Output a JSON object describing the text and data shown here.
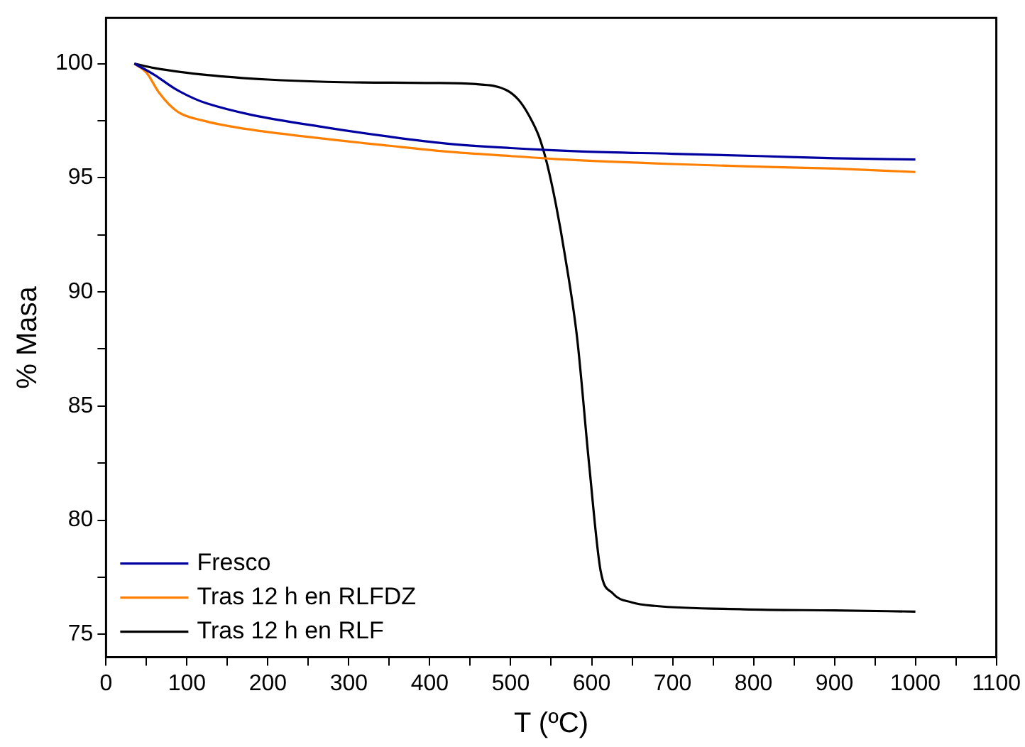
{
  "chart_data": {
    "type": "line",
    "xlabel": "T (ºC)",
    "ylabel": "% Masa",
    "xlim": [
      0,
      1100
    ],
    "ylim": [
      74,
      102
    ],
    "xticks": [
      0,
      {
        "value": 50,
        "label": null
      },
      100,
      {
        "value": 150,
        "label": null
      },
      200,
      {
        "value": 250,
        "label": null
      },
      300,
      {
        "value": 350,
        "label": null
      },
      400,
      {
        "value": 450,
        "label": null
      },
      500,
      {
        "value": 550,
        "label": null
      },
      600,
      {
        "value": 650,
        "label": null
      },
      700,
      {
        "value": 750,
        "label": null
      },
      800,
      {
        "value": 850,
        "label": null
      },
      900,
      {
        "value": 950,
        "label": null
      },
      1000,
      {
        "value": 1050,
        "label": null
      },
      1100
    ],
    "yticks": [
      75,
      {
        "value": 77.5,
        "label": null
      },
      80,
      {
        "value": 82.5,
        "label": null
      },
      85,
      {
        "value": 87.5,
        "label": null
      },
      90,
      {
        "value": 92.5,
        "label": null
      },
      95,
      {
        "value": 97.5,
        "label": null
      },
      100
    ],
    "grid": false,
    "legend": "bottom left",
    "marker": "none",
    "line_style": "solid",
    "series": [
      {
        "name": "Fresco",
        "color": "#0000a0",
        "x": [
          35,
          60,
          85,
          110,
          125,
          180,
          272,
          350,
          420,
          500,
          589,
          700,
          807,
          900,
          1000
        ],
        "values": [
          100,
          99.5,
          98.9,
          98.45,
          98.25,
          97.75,
          97.2,
          96.8,
          96.5,
          96.3,
          96.15,
          96.05,
          95.95,
          95.85,
          95.8
        ]
      },
      {
        "name": "Tras 12 h en RLFDZ",
        "color": "#ff8000",
        "x": [
          35,
          50,
          66,
          88,
          120,
          162,
          272,
          350,
          420,
          500,
          567,
          700,
          788,
          900,
          1000
        ],
        "values": [
          100,
          99.6,
          98.7,
          97.9,
          97.5,
          97.2,
          96.7,
          96.4,
          96.15,
          95.95,
          95.8,
          95.6,
          95.5,
          95.4,
          95.25
        ]
      },
      {
        "name": "Tras 12 h en RLF",
        "color": "#000000",
        "x": [
          35,
          60,
          125,
          200,
          272,
          400,
          457,
          494,
          510,
          523,
          535,
          545,
          556,
          567,
          582,
          597,
          611,
          626,
          650,
          678,
          788,
          900,
          1000
        ],
        "values": [
          100,
          99.8,
          99.5,
          99.3,
          99.2,
          99.15,
          99.1,
          98.85,
          98.4,
          97.7,
          96.8,
          95.6,
          93.8,
          91.6,
          88,
          82.4,
          77.8,
          76.8,
          76.4,
          76.25,
          76.1,
          76.05,
          76.0
        ]
      }
    ]
  }
}
